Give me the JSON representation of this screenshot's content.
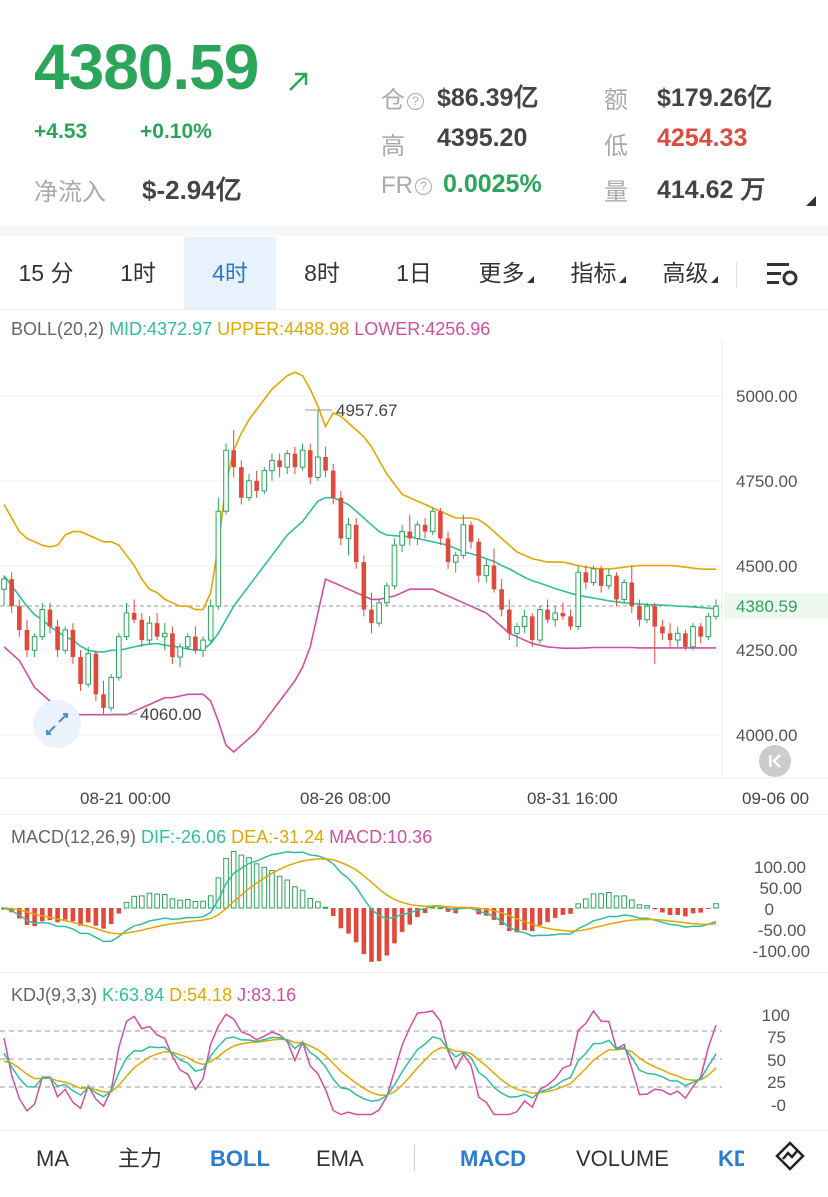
{
  "header": {
    "price": "4380.59",
    "change": "+4.53",
    "change_pct": "+0.10%",
    "net_inflow_label": "净流入",
    "net_inflow_value": "$-2.94亿",
    "stats": {
      "position_label": "仓",
      "position_value": "$86.39亿",
      "amount_label": "额",
      "amount_value": "$179.26亿",
      "high_label": "高",
      "high_value": "4395.20",
      "low_label": "低",
      "low_value": "4254.33",
      "fr_label": "FR",
      "fr_value": "0.0025%",
      "volume_label": "量",
      "volume_value": "414.62 万"
    }
  },
  "tabs": {
    "t15m": "15 分",
    "t1h": "1时",
    "t4h": "4时",
    "t8h": "8时",
    "t1d": "1日",
    "more": "更多",
    "indicators": "指标",
    "advanced": "高级"
  },
  "colors": {
    "up": "#2aa55a",
    "down": "#e04a3c",
    "mid": "#2fbf9a",
    "upper": "#e0a800",
    "lower": "#d14fa0",
    "active_tab": "#2a7bd2"
  },
  "boll": {
    "name": "BOLL(20,2)",
    "mid": "MID:4372.97",
    "upper": "UPPER:4488.98",
    "lower": "LOWER:4256.96"
  },
  "price_axis": [
    "5000.00",
    "4750.00",
    "4500.00",
    "4250.00",
    "4000.00"
  ],
  "current_price_tag": "4380.59",
  "high_marker": "4957.67",
  "low_marker": "4060.00",
  "time_axis": [
    "08-21 00:00",
    "08-26 08:00",
    "08-31 16:00",
    "09-06 00"
  ],
  "macd": {
    "name": "MACD(12,26,9)",
    "dif": "DIF:-26.06",
    "dea": "DEA:-31.24",
    "macd": "MACD:10.36",
    "axis": [
      "100.00",
      "50.00",
      "0",
      "-50.00",
      "-100.00"
    ]
  },
  "kdj": {
    "name": "KDJ(9,3,3)",
    "k": "K:63.84",
    "d": "D:54.18",
    "j": "J:83.16",
    "axis": [
      "100",
      "75",
      "50",
      "25",
      "-0"
    ]
  },
  "bottom_tabs": {
    "ma": "MA",
    "main": "主力",
    "boll": "BOLL",
    "ema": "EMA",
    "macd": "MACD",
    "volume": "VOLUME",
    "kdj": "KD"
  },
  "chart_data": {
    "type": "candlestick",
    "ylim": [
      3950,
      5100
    ],
    "bars": [
      [
        4430,
        4470,
        4380,
        4460
      ],
      [
        4460,
        4480,
        4360,
        4380
      ],
      [
        4380,
        4400,
        4290,
        4310
      ],
      [
        4310,
        4340,
        4230,
        4250
      ],
      [
        4250,
        4300,
        4230,
        4290
      ],
      [
        4290,
        4390,
        4280,
        4370
      ],
      [
        4370,
        4390,
        4300,
        4320
      ],
      [
        4320,
        4340,
        4230,
        4250
      ],
      [
        4250,
        4320,
        4240,
        4310
      ],
      [
        4310,
        4330,
        4210,
        4230
      ],
      [
        4230,
        4250,
        4130,
        4150
      ],
      [
        4150,
        4260,
        4140,
        4240
      ],
      [
        4240,
        4250,
        4100,
        4120
      ],
      [
        4120,
        4160,
        4060,
        4080
      ],
      [
        4080,
        4180,
        4070,
        4170
      ],
      [
        4170,
        4300,
        4160,
        4290
      ],
      [
        4290,
        4390,
        4280,
        4360
      ],
      [
        4360,
        4400,
        4330,
        4340
      ],
      [
        4340,
        4360,
        4260,
        4280
      ],
      [
        4280,
        4350,
        4270,
        4330
      ],
      [
        4330,
        4360,
        4280,
        4290
      ],
      [
        4290,
        4330,
        4250,
        4300
      ],
      [
        4300,
        4320,
        4210,
        4230
      ],
      [
        4230,
        4270,
        4200,
        4260
      ],
      [
        4260,
        4300,
        4250,
        4290
      ],
      [
        4290,
        4320,
        4240,
        4250
      ],
      [
        4250,
        4290,
        4230,
        4280
      ],
      [
        4280,
        4400,
        4270,
        4380
      ],
      [
        4380,
        4700,
        4370,
        4660
      ],
      [
        4660,
        4860,
        4650,
        4840
      ],
      [
        4840,
        4900,
        4760,
        4790
      ],
      [
        4790,
        4810,
        4680,
        4700
      ],
      [
        4700,
        4770,
        4690,
        4750
      ],
      [
        4750,
        4780,
        4700,
        4720
      ],
      [
        4720,
        4790,
        4710,
        4780
      ],
      [
        4780,
        4830,
        4750,
        4810
      ],
      [
        4810,
        4830,
        4760,
        4790
      ],
      [
        4790,
        4840,
        4770,
        4830
      ],
      [
        4830,
        4850,
        4770,
        4790
      ],
      [
        4790,
        4860,
        4780,
        4840
      ],
      [
        4840,
        4860,
        4740,
        4760
      ],
      [
        4760,
        4960,
        4750,
        4820
      ],
      [
        4820,
        4850,
        4760,
        4780
      ],
      [
        4780,
        4800,
        4680,
        4700
      ],
      [
        4700,
        4720,
        4560,
        4580
      ],
      [
        4580,
        4640,
        4530,
        4620
      ],
      [
        4620,
        4640,
        4490,
        4510
      ],
      [
        4510,
        4530,
        4350,
        4370
      ],
      [
        4370,
        4420,
        4300,
        4330
      ],
      [
        4330,
        4400,
        4320,
        4390
      ],
      [
        4390,
        4450,
        4380,
        4440
      ],
      [
        4440,
        4580,
        4430,
        4560
      ],
      [
        4560,
        4620,
        4540,
        4600
      ],
      [
        4600,
        4650,
        4560,
        4580
      ],
      [
        4580,
        4630,
        4560,
        4620
      ],
      [
        4620,
        4640,
        4580,
        4600
      ],
      [
        4600,
        4670,
        4590,
        4660
      ],
      [
        4660,
        4670,
        4560,
        4580
      ],
      [
        4580,
        4600,
        4490,
        4510
      ],
      [
        4510,
        4540,
        4480,
        4530
      ],
      [
        4530,
        4650,
        4520,
        4620
      ],
      [
        4620,
        4630,
        4550,
        4570
      ],
      [
        4570,
        4580,
        4450,
        4470
      ],
      [
        4470,
        4520,
        4450,
        4500
      ],
      [
        4500,
        4550,
        4420,
        4430
      ],
      [
        4430,
        4460,
        4350,
        4370
      ],
      [
        4370,
        4400,
        4280,
        4300
      ],
      [
        4300,
        4330,
        4260,
        4320
      ],
      [
        4320,
        4370,
        4300,
        4350
      ],
      [
        4350,
        4360,
        4260,
        4280
      ],
      [
        4280,
        4380,
        4270,
        4370
      ],
      [
        4370,
        4400,
        4330,
        4340
      ],
      [
        4340,
        4380,
        4320,
        4360
      ],
      [
        4360,
        4390,
        4340,
        4350
      ],
      [
        4350,
        4370,
        4310,
        4320
      ],
      [
        4320,
        4500,
        4310,
        4480
      ],
      [
        4480,
        4500,
        4430,
        4450
      ],
      [
        4450,
        4500,
        4440,
        4490
      ],
      [
        4490,
        4500,
        4420,
        4440
      ],
      [
        4440,
        4490,
        4430,
        4470
      ],
      [
        4470,
        4480,
        4380,
        4400
      ],
      [
        4400,
        4460,
        4390,
        4450
      ],
      [
        4450,
        4500,
        4360,
        4380
      ],
      [
        4380,
        4400,
        4320,
        4340
      ],
      [
        4340,
        4390,
        4330,
        4380
      ],
      [
        4380,
        4390,
        4210,
        4320
      ],
      [
        4320,
        4340,
        4280,
        4300
      ],
      [
        4300,
        4330,
        4260,
        4280
      ],
      [
        4280,
        4320,
        4260,
        4300
      ],
      [
        4300,
        4310,
        4250,
        4260
      ],
      [
        4260,
        4330,
        4250,
        4320
      ],
      [
        4320,
        4330,
        4270,
        4290
      ],
      [
        4290,
        4360,
        4280,
        4350
      ],
      [
        4350,
        4400,
        4340,
        4380
      ]
    ],
    "mid": [
      4470,
      4440,
      4410,
      4380,
      4355,
      4340,
      4320,
      4305,
      4290,
      4280,
      4262,
      4250,
      4245,
      4245,
      4250,
      4250,
      4255,
      4260,
      4265,
      4268,
      4270,
      4265,
      4262,
      4258,
      4254,
      4250,
      4252,
      4270,
      4300,
      4340,
      4380,
      4410,
      4440,
      4470,
      4500,
      4530,
      4560,
      4590,
      4610,
      4630,
      4660,
      4690,
      4700,
      4700,
      4690,
      4680,
      4660,
      4640,
      4620,
      4600,
      4590,
      4588,
      4586,
      4585,
      4580,
      4575,
      4570,
      4565,
      4560,
      4550,
      4540,
      4535,
      4528,
      4520,
      4512,
      4500,
      4490,
      4478,
      4465,
      4455,
      4448,
      4440,
      4432,
      4425,
      4418,
      4412,
      4408,
      4404,
      4400,
      4396,
      4393,
      4390,
      4388,
      4386,
      4385,
      4384,
      4383,
      4382,
      4380,
      4379,
      4378,
      4376,
      4374,
      4373
    ],
    "upper": [
      4680,
      4640,
      4600,
      4580,
      4570,
      4560,
      4555,
      4560,
      4590,
      4600,
      4600,
      4590,
      4580,
      4570,
      4570,
      4560,
      4530,
      4500,
      4460,
      4430,
      4420,
      4400,
      4390,
      4380,
      4380,
      4370,
      4370,
      4420,
      4560,
      4740,
      4840,
      4890,
      4930,
      4960,
      4990,
      5020,
      5040,
      5060,
      5070,
      5060,
      5020,
      4970,
      4910,
      4950,
      4940,
      4920,
      4900,
      4880,
      4850,
      4810,
      4770,
      4740,
      4710,
      4700,
      4690,
      4680,
      4670,
      4660,
      4650,
      4640,
      4640,
      4640,
      4635,
      4620,
      4600,
      4580,
      4560,
      4540,
      4530,
      4520,
      4515,
      4510,
      4510,
      4510,
      4505,
      4500,
      4495,
      4492,
      4490,
      4490,
      4492,
      4495,
      4498,
      4500,
      4500,
      4500,
      4500,
      4500,
      4498,
      4495,
      4492,
      4490,
      4489,
      4489
    ],
    "lower": [
      4260,
      4240,
      4220,
      4180,
      4140,
      4120,
      4100,
      4080,
      4060,
      4060,
      4060,
      4060,
      4060,
      4060,
      4060,
      4060,
      4060,
      4070,
      4080,
      4090,
      4100,
      4110,
      4110,
      4115,
      4120,
      4120,
      4120,
      4100,
      4040,
      3970,
      3950,
      3970,
      3990,
      4010,
      4040,
      4070,
      4100,
      4130,
      4160,
      4200,
      4260,
      4360,
      4460,
      4450,
      4440,
      4430,
      4420,
      4410,
      4400,
      4400,
      4405,
      4410,
      4420,
      4430,
      4430,
      4430,
      4430,
      4420,
      4410,
      4400,
      4390,
      4380,
      4370,
      4360,
      4340,
      4320,
      4300,
      4290,
      4280,
      4270,
      4265,
      4260,
      4258,
      4256,
      4256,
      4256,
      4257,
      4258,
      4258,
      4258,
      4258,
      4258,
      4258,
      4257,
      4257,
      4257,
      4257,
      4257,
      4257,
      4257,
      4257,
      4257,
      4257,
      4257
    ],
    "high_marker_value": 4957.67,
    "low_marker_value": 4060.0
  }
}
